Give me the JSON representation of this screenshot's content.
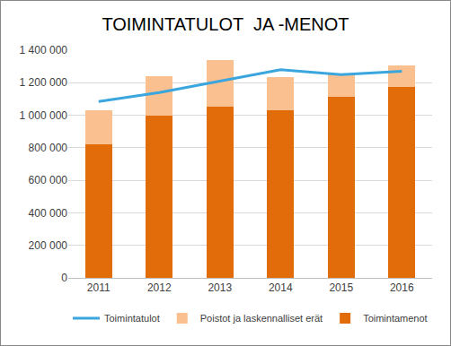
{
  "chart_data": {
    "type": "bar",
    "title": "TOIMINTATULOT  JA -MENOT",
    "categories": [
      "2011",
      "2012",
      "2013",
      "2014",
      "2015",
      "2016"
    ],
    "stacked": true,
    "grid": true,
    "legend": "bottom",
    "series": [
      {
        "name": "Toimintamenot",
        "type": "bar",
        "color": "#E36C0A",
        "values": [
          820000,
          995000,
          1055000,
          1030000,
          1115000,
          1175000
        ]
      },
      {
        "name": "Poistot ja laskennalliset erät",
        "type": "bar",
        "color": "#FAC090",
        "values": [
          210000,
          245000,
          285000,
          205000,
          135000,
          130000
        ]
      },
      {
        "name": "Toimintatulot",
        "type": "line",
        "color": "#3AA6DD",
        "values": [
          1085000,
          1140000,
          1210000,
          1280000,
          1250000,
          1270000
        ]
      }
    ],
    "ylim": [
      0,
      1400000
    ],
    "yticks": [
      0,
      {
        "value": 200000,
        "label": "200 000"
      },
      {
        "value": 400000,
        "label": "400 000"
      },
      {
        "value": 600000,
        "label": "600 000"
      },
      {
        "value": 800000,
        "label": "800 000"
      },
      {
        "value": 1000000,
        "label": "1 000 000"
      },
      {
        "value": 1200000,
        "label": "1 200 000"
      },
      {
        "value": 1400000,
        "label": "1 400 000"
      }
    ]
  }
}
